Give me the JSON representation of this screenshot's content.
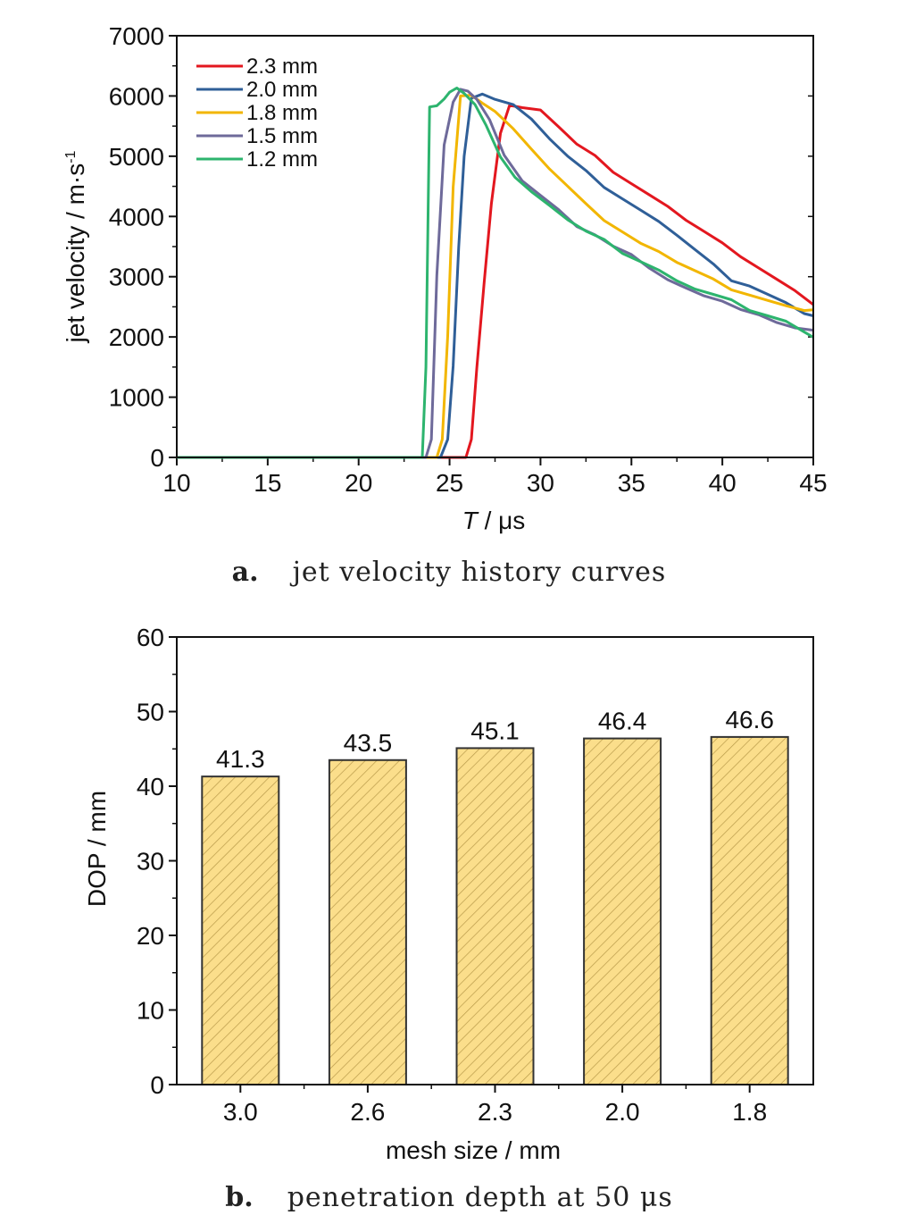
{
  "chart_data": [
    {
      "type": "line",
      "panel_letter": "a.",
      "caption": "jet velocity history curves",
      "xlabel_italic": "T",
      "xlabel_rest": " / μs",
      "ylabel": "jet velocity / m·s",
      "ylabel_sup": "-1",
      "xlim": [
        10,
        45
      ],
      "ylim": [
        0,
        7000
      ],
      "xticks": [
        10,
        15,
        20,
        25,
        30,
        35,
        40,
        45
      ],
      "yticks": [
        0,
        1000,
        2000,
        3000,
        4000,
        5000,
        6000,
        7000
      ],
      "legend_position": "top-left",
      "series": [
        {
          "name": "2.3 mm",
          "color": "#e3171f",
          "x": [
            10,
            24.5,
            25.9,
            26.2,
            26.5,
            26.9,
            27.3,
            27.8,
            28.3,
            29,
            30,
            31,
            32,
            33,
            34,
            35,
            36,
            37,
            38,
            39,
            40,
            41,
            42,
            43,
            44,
            45
          ],
          "y": [
            0,
            0,
            0,
            300,
            1500,
            2900,
            4200,
            5400,
            5850,
            5800,
            5750,
            5500,
            5200,
            5000,
            4750,
            4550,
            4350,
            4150,
            3950,
            3750,
            3550,
            3350,
            3150,
            2950,
            2750,
            2550
          ]
        },
        {
          "name": "2.0 mm",
          "color": "#2f5f98",
          "x": [
            10,
            24.5,
            24.9,
            25.2,
            25.5,
            25.8,
            26.2,
            26.8,
            27.5,
            28.5,
            29.5,
            30.5,
            31.5,
            32.5,
            33.5,
            34.5,
            35.5,
            36.5,
            37.5,
            38.5,
            39.5,
            40.5,
            41.5,
            42.5,
            43.5,
            44.5,
            45
          ],
          "y": [
            0,
            0,
            300,
            1500,
            3500,
            5000,
            5950,
            6050,
            5950,
            5850,
            5600,
            5300,
            5000,
            4750,
            4500,
            4300,
            4100,
            3900,
            3700,
            3450,
            3200,
            2950,
            2850,
            2700,
            2550,
            2400,
            2350
          ]
        },
        {
          "name": "1.8 mm",
          "color": "#f2b600",
          "x": [
            10,
            24.3,
            24.6,
            24.9,
            25.2,
            25.6,
            26.2,
            26.8,
            27.5,
            28.5,
            29.5,
            30.5,
            31.5,
            32.5,
            33.5,
            34.5,
            35.5,
            36.5,
            37.5,
            38.5,
            39.5,
            40.5,
            41.5,
            42.5,
            43.5,
            44.5,
            45
          ],
          "y": [
            0,
            0,
            300,
            2000,
            4500,
            6000,
            6000,
            5900,
            5750,
            5450,
            5100,
            4800,
            4500,
            4200,
            3950,
            3750,
            3550,
            3400,
            3250,
            3100,
            2950,
            2800,
            2700,
            2600,
            2500,
            2450,
            2450
          ]
        },
        {
          "name": "1.5 mm",
          "color": "#6e6a9a",
          "x": [
            10,
            23.7,
            24.0,
            24.3,
            24.7,
            25.2,
            25.6,
            26.0,
            26.5,
            27.2,
            28.0,
            29,
            30,
            31,
            32,
            33,
            34,
            35,
            36,
            37,
            38,
            39,
            40,
            41,
            42,
            43,
            44,
            45
          ],
          "y": [
            0,
            0,
            300,
            3000,
            5200,
            5900,
            6100,
            6100,
            5950,
            5600,
            5000,
            4600,
            4350,
            4100,
            3850,
            3700,
            3500,
            3350,
            3150,
            2950,
            2800,
            2700,
            2600,
            2450,
            2350,
            2250,
            2150,
            2100
          ]
        },
        {
          "name": "1.2 mm",
          "color": "#2db46e",
          "x": [
            10,
            23.5,
            23.7,
            23.9,
            24.3,
            24.7,
            25.0,
            25.4,
            25.8,
            26.4,
            27.0,
            27.8,
            28.6,
            29.5,
            30.5,
            31.5,
            32.5,
            33.5,
            34.5,
            35.5,
            36.5,
            37.5,
            38.5,
            39.5,
            40.5,
            41.5,
            42.5,
            43.5,
            44.5,
            45
          ],
          "y": [
            0,
            0,
            1500,
            5800,
            5850,
            5950,
            6050,
            6150,
            6050,
            5850,
            5500,
            5000,
            4650,
            4400,
            4200,
            3950,
            3750,
            3600,
            3400,
            3250,
            3100,
            2950,
            2800,
            2700,
            2600,
            2450,
            2350,
            2250,
            2100,
            2000
          ]
        }
      ]
    },
    {
      "type": "bar",
      "panel_letter": "b.",
      "caption": "penetration depth at 50 μs",
      "xlabel": "mesh size / mm",
      "ylabel": "DOP / mm",
      "ylim": [
        0,
        60
      ],
      "yticks": [
        0,
        10,
        20,
        30,
        40,
        50,
        60
      ],
      "categories": [
        "3.0",
        "2.6",
        "2.3",
        "2.0",
        "1.8"
      ],
      "values": [
        41.3,
        43.5,
        45.1,
        46.4,
        46.6
      ],
      "data_labels": [
        "41.3",
        "43.5",
        "45.1",
        "46.4",
        "46.6"
      ],
      "bar_color": "#fbde8b",
      "hatch_color": "#b99a4a"
    }
  ]
}
